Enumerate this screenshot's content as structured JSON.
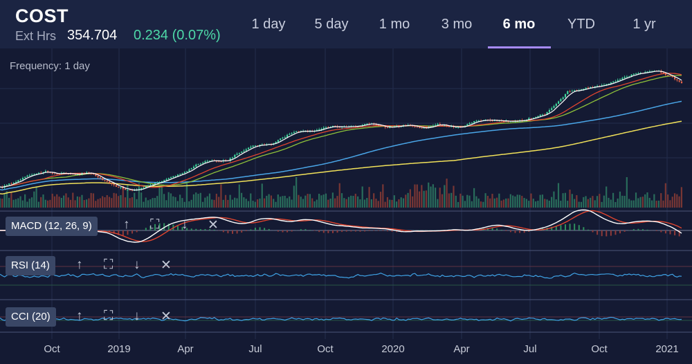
{
  "header": {
    "ticker": "COST",
    "ext_label": "Ext Hrs",
    "price": "354.704",
    "change": "0.234 (0.07%)",
    "change_color": "#4ed9a8"
  },
  "tabs": [
    {
      "label": "1 day",
      "active": false
    },
    {
      "label": "5 day",
      "active": false
    },
    {
      "label": "1 mo",
      "active": false
    },
    {
      "label": "3 mo",
      "active": false
    },
    {
      "label": "6 mo",
      "active": true
    },
    {
      "label": "YTD",
      "active": false
    },
    {
      "label": "1 yr",
      "active": false
    }
  ],
  "frequency_label": "Frequency: 1 day",
  "panels": {
    "macd": {
      "label": "MACD (12, 26, 9)"
    },
    "rsi": {
      "label": "RSI (14)"
    },
    "cci": {
      "label": "CCI (20)"
    }
  },
  "panel_tools": [
    {
      "name": "move-up-icon",
      "glyph": "↑"
    },
    {
      "name": "expand-icon",
      "glyph": "⛶"
    },
    {
      "name": "move-down-icon",
      "glyph": "↓"
    },
    {
      "name": "close-icon",
      "glyph": "✕"
    }
  ],
  "colors": {
    "up": "#3fd49c",
    "down": "#e8644a",
    "ma_short": "#ffffff",
    "ma_red": "#e0452f",
    "ma_green": "#8fc23a",
    "ma_blue": "#4aa6e8",
    "ma_yellow": "#f2e25a",
    "rsi_line": "#3fa3e6",
    "cci_line": "#3fa3e6"
  },
  "chart_data": {
    "type": "line",
    "title": "",
    "x_tick_labels": [
      "Oct",
      "2019",
      "Apr",
      "Jul",
      "Oct",
      "2020",
      "Apr",
      "Jul",
      "Oct",
      "2021"
    ],
    "price_series": {
      "x": [
        "2018-07",
        "2018-08",
        "2018-09",
        "2018-10",
        "2018-11",
        "2018-12",
        "2019-01",
        "2019-02",
        "2019-03",
        "2019-04",
        "2019-05",
        "2019-06",
        "2019-07",
        "2019-08",
        "2019-09",
        "2019-10",
        "2019-11",
        "2019-12",
        "2020-01",
        "2020-02",
        "2020-03",
        "2020-04",
        "2020-05",
        "2020-06",
        "2020-07",
        "2020-08",
        "2020-09",
        "2020-10",
        "2020-11",
        "2020-12",
        "2021-01"
      ],
      "close": [
        205,
        218,
        229,
        225,
        227,
        206,
        201,
        212,
        226,
        245,
        246,
        264,
        270,
        289,
        290,
        295,
        300,
        294,
        297,
        300,
        290,
        302,
        305,
        305,
        314,
        346,
        352,
        360,
        375,
        378,
        360
      ]
    },
    "moving_averages": [
      "white",
      "red",
      "green",
      "blue",
      "yellow"
    ],
    "indicators": [
      "MACD (12, 26, 9)",
      "RSI (14)",
      "CCI (20)"
    ],
    "grid": true,
    "legend": "none"
  }
}
